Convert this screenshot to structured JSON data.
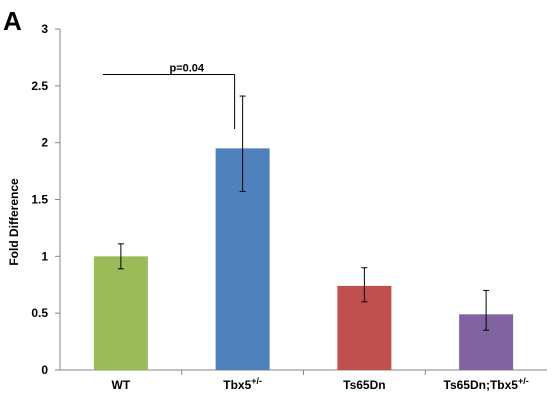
{
  "panel_label": "A",
  "chart_data": {
    "type": "bar",
    "categories": [
      {
        "base": "WT",
        "sup": ""
      },
      {
        "base": "Tbx5",
        "sup": "+/-"
      },
      {
        "base": "Ts65Dn",
        "sup": ""
      },
      {
        "base": "Ts65Dn;Tbx5",
        "sup": "+/-"
      }
    ],
    "values": [
      1.0,
      1.95,
      0.74,
      0.49
    ],
    "error_bars": [
      [
        0.89,
        1.11
      ],
      [
        1.57,
        2.41
      ],
      [
        0.6,
        0.9
      ],
      [
        0.35,
        0.7
      ]
    ],
    "colors": [
      "#9bbb59",
      "#4f81bd",
      "#c0504d",
      "#8064a2"
    ],
    "ylabel": "Fold Difference",
    "ylim": [
      0,
      3
    ],
    "yticks": [
      "0",
      "0.5",
      "1",
      "1.5",
      "2",
      "2.5",
      "3"
    ],
    "grid": false,
    "annotations": [
      {
        "text": "p=0.04",
        "from_category": 0,
        "to_category": 1,
        "line_y": 2.6,
        "drop_to": 2.12
      }
    ]
  }
}
